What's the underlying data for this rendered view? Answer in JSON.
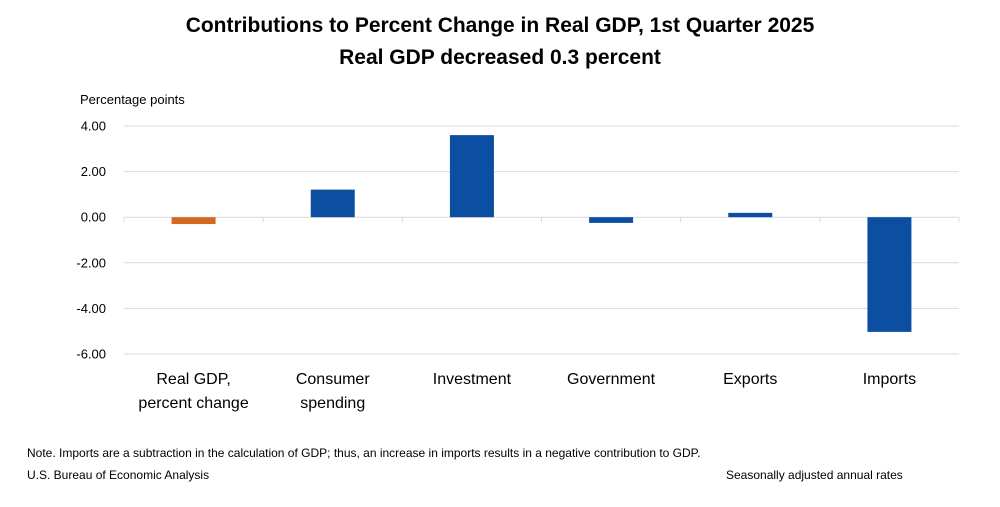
{
  "chart_data": {
    "type": "bar",
    "title": "Contributions to Percent Change in Real GDP, 1st Quarter 2025",
    "subtitle": "Real GDP decreased 0.3 percent",
    "ylabel": "Percentage points",
    "xlabel": "",
    "ylim": [
      -6,
      4
    ],
    "yticks": [
      4,
      2,
      0,
      -2,
      -4,
      -6
    ],
    "ytick_labels": [
      "4.00",
      "2.00",
      "0.00",
      "-2.00",
      "-4.00",
      "-6.00"
    ],
    "grid": true,
    "categories": [
      [
        "Real GDP,",
        "percent change"
      ],
      [
        "Consumer",
        "spending"
      ],
      [
        "Investment"
      ],
      [
        "Government"
      ],
      [
        "Exports"
      ],
      [
        "Imports"
      ]
    ],
    "values": [
      -0.3,
      1.21,
      3.6,
      -0.25,
      0.19,
      -5.03
    ],
    "colors": [
      "#D2691E",
      "#0B4EA2",
      "#0B4EA2",
      "#0B4EA2",
      "#0B4EA2",
      "#0B4EA2"
    ],
    "gridline_color": "#D9D9D9"
  },
  "footer": {
    "note": "Note. Imports are a subtraction in the calculation of GDP; thus, an increase in imports results in a negative contribution to GDP.",
    "source": "U.S. Bureau of Economic Analysis",
    "rates": "Seasonally adjusted annual rates"
  }
}
